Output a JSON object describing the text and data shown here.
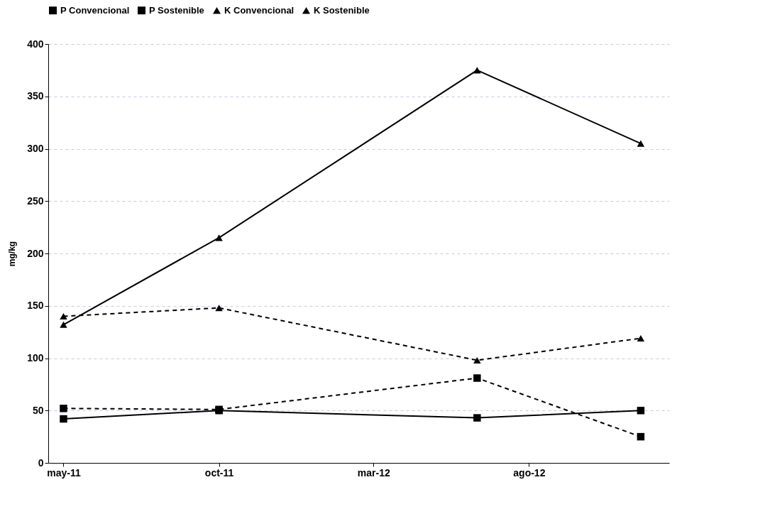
{
  "chart_data": {
    "type": "line",
    "ylabel": "mg/kg",
    "x": [
      "2011-05-01",
      "2011-10-01",
      "2012-06-11",
      "2012-11-19"
    ],
    "series": [
      {
        "name": "P Convencional",
        "color": "#000000",
        "marker": "square",
        "line_style": "dashed",
        "values": [
          52,
          51,
          81,
          25
        ]
      },
      {
        "name": "P Sostenible",
        "color": "#000000",
        "marker": "square",
        "line_style": "solid",
        "values": [
          42,
          50,
          43,
          50
        ]
      },
      {
        "name": "K Convencional",
        "color": "#000000",
        "marker": "triangle",
        "line_style": "dashed",
        "values": [
          140,
          148,
          98,
          119
        ]
      },
      {
        "name": "K Sostenible",
        "color": "#000000",
        "marker": "triangle",
        "line_style": "solid",
        "values": [
          132,
          215,
          375,
          305
        ]
      }
    ],
    "xlim": [
      "2011-04-16",
      "2012-12-17"
    ],
    "xticks": [
      {
        "value": "2011-05-01",
        "label": "may-11"
      },
      {
        "value": "2011-10-01",
        "label": "oct-11"
      },
      {
        "value": "2012-03-01",
        "label": "mar-12"
      },
      {
        "value": "2012-08-01",
        "label": "ago-12"
      }
    ],
    "ylim": [
      0,
      400
    ],
    "yticks": [
      0,
      50,
      100,
      150,
      200,
      250,
      300,
      350,
      400
    ],
    "grid": "y",
    "legend": "top"
  }
}
